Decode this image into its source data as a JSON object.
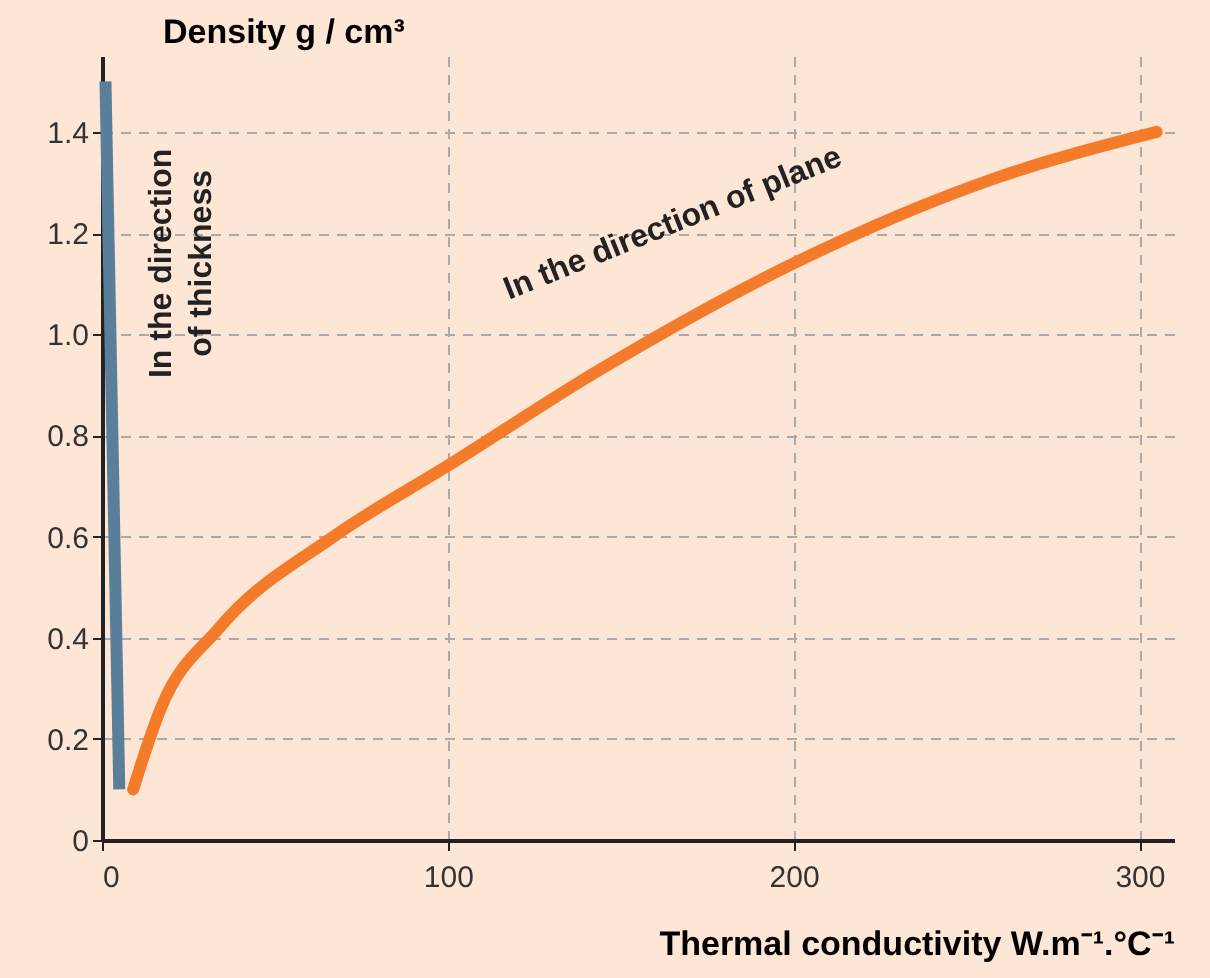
{
  "chart_data": {
    "type": "line",
    "xlabel": "Thermal conductivity W.m⁻¹.°C⁻¹",
    "ylabel": "Density g / cm³",
    "xlim": [
      0,
      310
    ],
    "xticks": [
      0,
      100,
      200,
      300
    ],
    "ylim": [
      0,
      1.55
    ],
    "yticks": [
      0,
      0.2,
      0.4,
      0.6,
      0.8,
      {
        "value": 1,
        "label": "1.0"
      },
      1.2,
      1.4
    ],
    "grid": true,
    "line_style": "solid",
    "marker": "none",
    "series": [
      {
        "name": "In the direction of thickness",
        "color": "#5a7f9a",
        "x": [
          5,
          1
        ],
        "values": [
          0.1,
          1.5
        ]
      },
      {
        "name": "In the direction of plane",
        "color": "#f47b2a",
        "x": [
          9,
          17,
          34,
          67,
          100,
          144,
          200,
          259,
          305
        ],
        "values": [
          0.1,
          0.26,
          0.42,
          0.6,
          0.74,
          0.93,
          1.14,
          1.31,
          1.4
        ]
      }
    ]
  }
}
